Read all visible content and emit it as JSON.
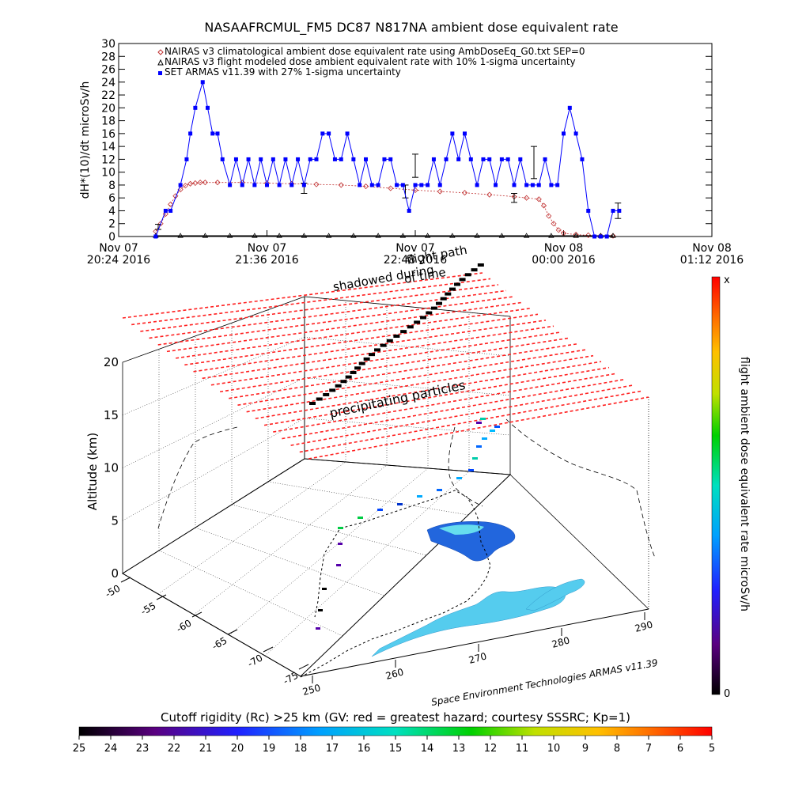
{
  "top_chart": {
    "title": "NASAAFRCMUL_FM5 DC87 N817NA ambient dose equivalent rate",
    "ylabel": "dH*(10)/dt microSv/h",
    "chart_data": {
      "type": "line",
      "title": "NASAAFRCMUL_FM5 DC87 N817NA ambient dose equivalent rate",
      "ylabel": "dH*(10)/dt microSv/h",
      "xlabel": "",
      "ylim": [
        0,
        30
      ],
      "y_ticks": [
        0,
        2,
        4,
        6,
        8,
        10,
        12,
        14,
        16,
        18,
        20,
        22,
        24,
        26,
        28,
        30
      ],
      "x_range_hours": [
        20.4,
        25.2
      ],
      "x_ticks": [
        {
          "hour": 20.4,
          "line1": "Nov 07",
          "line2": "20:24 2016"
        },
        {
          "hour": 21.6,
          "line1": "Nov 07",
          "line2": "21:36 2016"
        },
        {
          "hour": 22.8,
          "line1": "Nov 07",
          "line2": "22:48 2016"
        },
        {
          "hour": 24.0,
          "line1": "Nov 08",
          "line2": "00:00 2016"
        },
        {
          "hour": 25.2,
          "line1": "Nov 08",
          "line2": "01:12 2016"
        }
      ],
      "legend_placement": "top-left",
      "series": [
        {
          "name": "NAIRAS v3 climatological ambient dose equivalent rate using AmbDoseEq_G0.txt SEP=0",
          "color": "#c03030",
          "marker": "diamond",
          "x_hours": [
            20.7,
            20.74,
            20.78,
            20.82,
            20.86,
            20.9,
            20.94,
            20.98,
            21.02,
            21.06,
            21.1,
            21.2,
            21.4,
            21.6,
            21.8,
            22.0,
            22.2,
            22.4,
            22.6,
            22.8,
            23.0,
            23.2,
            23.4,
            23.6,
            23.7,
            23.8,
            23.84,
            23.88,
            23.92,
            23.96,
            24.0,
            24.1,
            24.2,
            24.3,
            24.4
          ],
          "y": [
            0.8,
            2.0,
            3.5,
            5.0,
            6.3,
            7.3,
            7.9,
            8.2,
            8.3,
            8.4,
            8.4,
            8.4,
            8.4,
            8.3,
            8.2,
            8.1,
            8.0,
            7.8,
            7.5,
            7.2,
            7.0,
            6.8,
            6.5,
            6.2,
            6.0,
            5.8,
            4.8,
            3.2,
            2.0,
            1.0,
            0.5,
            0.3,
            0.2,
            0.1,
            0.1
          ]
        },
        {
          "name": "NAIRAS v3 flight modeled dose ambient equivalent rate with 10% 1-sigma uncertainty",
          "color": "#000000",
          "marker": "triangle",
          "x_hours": [
            20.7,
            20.9,
            21.1,
            21.3,
            21.5,
            21.7,
            21.9,
            22.1,
            22.3,
            22.5,
            22.7,
            22.9,
            23.1,
            23.3,
            23.5,
            23.7,
            23.9,
            24.1,
            24.3,
            24.4
          ],
          "y": [
            0.1,
            0.1,
            0.1,
            0.1,
            0.1,
            0.1,
            0.1,
            0.1,
            0.1,
            0.1,
            0.1,
            0.1,
            0.1,
            0.1,
            0.1,
            0.1,
            0.1,
            0.1,
            0.1,
            0.1
          ],
          "error_bars": [
            {
              "x_hour": 20.72,
              "y": 1.5,
              "err": 0.4
            },
            {
              "x_hour": 21.9,
              "y": 7.5,
              "err": 0.8
            },
            {
              "x_hour": 22.72,
              "y": 7.0,
              "err": 1.0
            },
            {
              "x_hour": 22.8,
              "y": 11.0,
              "err": 1.8
            },
            {
              "x_hour": 23.6,
              "y": 6.0,
              "err": 0.7
            },
            {
              "x_hour": 23.76,
              "y": 11.5,
              "err": 2.5
            },
            {
              "x_hour": 24.44,
              "y": 4.0,
              "err": 1.2
            }
          ]
        },
        {
          "name": "SET ARMAS v11.39 with 27% 1-sigma uncertainty",
          "color": "#0000ff",
          "marker": "square",
          "x_hours": [
            20.7,
            20.78,
            20.82,
            20.9,
            20.95,
            20.98,
            21.02,
            21.08,
            21.12,
            21.16,
            21.2,
            21.24,
            21.3,
            21.35,
            21.4,
            21.45,
            21.5,
            21.55,
            21.6,
            21.65,
            21.7,
            21.75,
            21.8,
            21.85,
            21.9,
            21.95,
            22.0,
            22.05,
            22.1,
            22.15,
            22.2,
            22.25,
            22.3,
            22.35,
            22.4,
            22.45,
            22.5,
            22.55,
            22.6,
            22.65,
            22.7,
            22.75,
            22.8,
            22.85,
            22.9,
            22.95,
            23.0,
            23.05,
            23.1,
            23.15,
            23.2,
            23.25,
            23.3,
            23.35,
            23.4,
            23.45,
            23.5,
            23.55,
            23.6,
            23.65,
            23.7,
            23.75,
            23.8,
            23.85,
            23.9,
            23.95,
            24.0,
            24.05,
            24.1,
            24.15,
            24.2,
            24.25,
            24.3,
            24.35,
            24.4,
            24.45
          ],
          "y": [
            0,
            4,
            4,
            8,
            12,
            16,
            20,
            24,
            20,
            16,
            16,
            12,
            8,
            12,
            8,
            12,
            8,
            12,
            8,
            12,
            8,
            12,
            8,
            12,
            8,
            12,
            12,
            16,
            16,
            12,
            12,
            16,
            12,
            8,
            12,
            8,
            8,
            12,
            12,
            8,
            8,
            4,
            8,
            8,
            8,
            12,
            8,
            12,
            16,
            12,
            16,
            12,
            8,
            12,
            12,
            8,
            12,
            12,
            8,
            12,
            8,
            8,
            8,
            12,
            8,
            8,
            16,
            20,
            16,
            12,
            4,
            0,
            0,
            0,
            4,
            4
          ]
        }
      ]
    }
  },
  "annotations": {
    "shadowed": "shadowed during",
    "flight_path": "flight path",
    "of_time": "of time",
    "precipitating": "precipitating particles",
    "credit": "Space Environment Technologies ARMAS v11.39"
  },
  "map3d": {
    "ylabel": "Altitude (km)",
    "z_ticks": [
      0,
      5,
      10,
      15,
      20
    ],
    "lat_ticks": [
      -50,
      -55,
      -60,
      -65,
      -70,
      -75
    ],
    "lon_ticks": [
      250,
      260,
      270,
      280,
      290
    ],
    "colors": {
      "grid_red": "#ff2020",
      "track": "#000000"
    }
  },
  "colorbar_right": {
    "label": "flight ambient dose equivalent rate microSv/h",
    "top_label": "x",
    "bottom_label": "0"
  },
  "colorbar_bottom": {
    "title": "Cutoff rigidity (Rc) >25 km (GV: red = greatest hazard; courtesy SSSRC; Kp=1)",
    "ticks": [
      25,
      24,
      23,
      22,
      21,
      20,
      19,
      18,
      17,
      16,
      15,
      14,
      13,
      12,
      11,
      10,
      9,
      8,
      7,
      6,
      5
    ]
  }
}
